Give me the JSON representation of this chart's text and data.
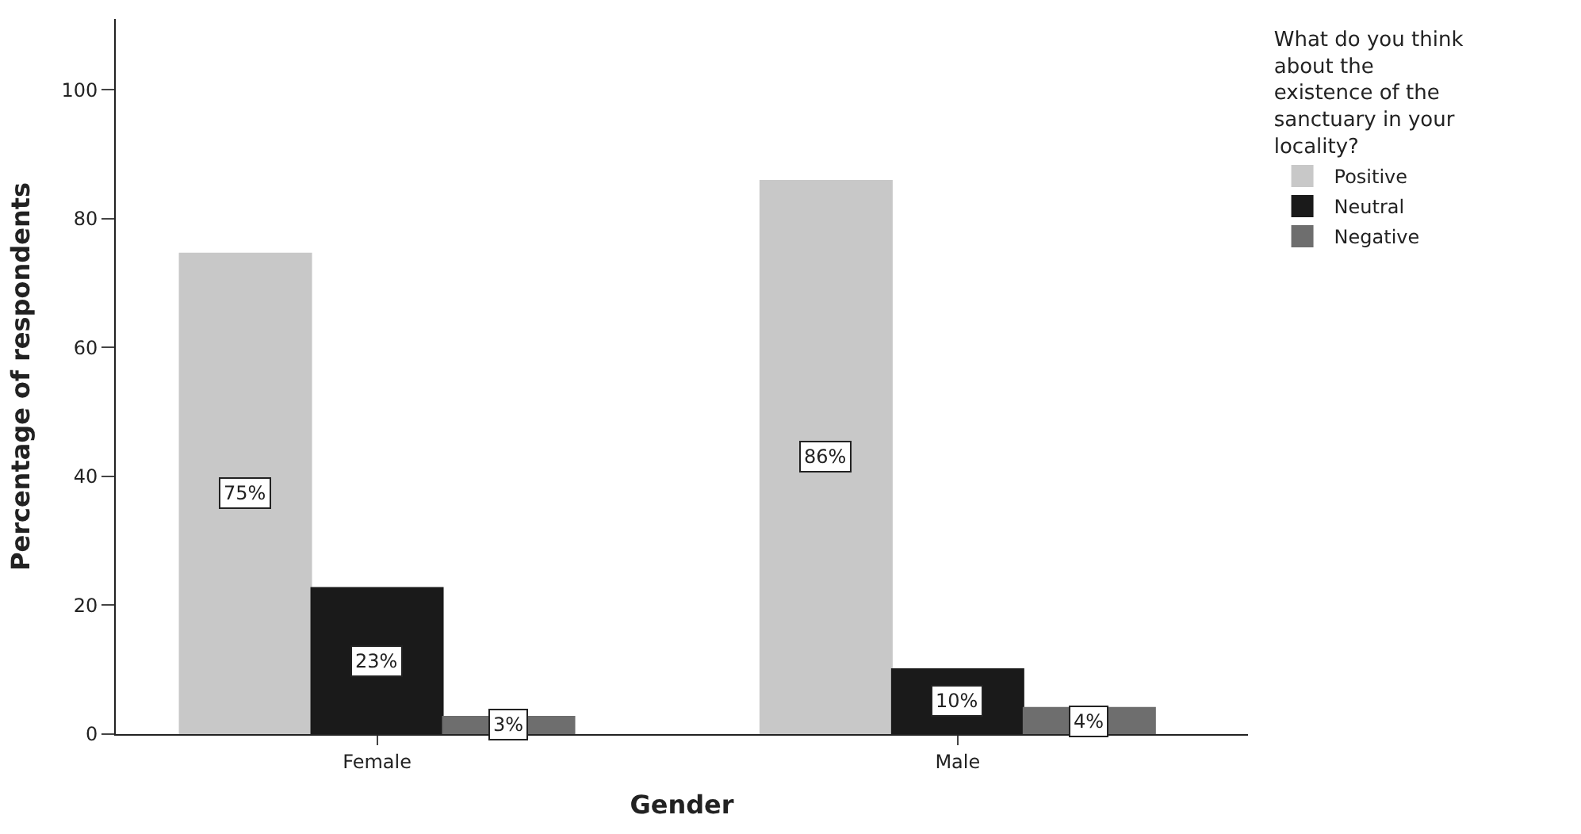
{
  "chart_data": {
    "type": "bar",
    "xlabel": "Gender",
    "ylabel": "Percentage of respondents",
    "legend_title": "What do you think about the existence of the sanctuary in your locality?",
    "categories": [
      "Female",
      "Male"
    ],
    "series": [
      {
        "name": "Positive",
        "color": "#c8c8c8",
        "values": [
          74.6,
          85.9
        ],
        "value_labels": [
          "75%",
          "86%"
        ]
      },
      {
        "name": "Neutral",
        "color": "#1a1a1a",
        "values": [
          22.7,
          10.1
        ],
        "value_labels": [
          "23%",
          "10%"
        ]
      },
      {
        "name": "Negative",
        "color": "#6e6e6e",
        "values": [
          2.7,
          4.1
        ],
        "value_labels": [
          "3%",
          "4%"
        ]
      }
    ],
    "ylim": [
      0,
      111
    ],
    "yticks": [
      0,
      20,
      40,
      60,
      80,
      100
    ],
    "grid": false,
    "legend": "top right"
  }
}
